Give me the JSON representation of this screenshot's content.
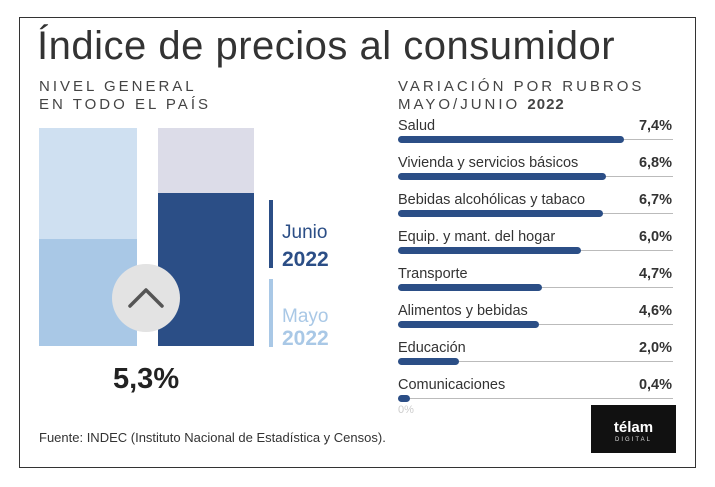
{
  "title": "Índice de precios al consumidor",
  "left_panel": {
    "subtitle_line1": "NIVEL GENERAL",
    "subtitle_line2": "EN TODO EL PAÍS",
    "value_label": "5,3%",
    "trend_icon": "chevron-up-icon",
    "legend": [
      {
        "month": "Junio",
        "year": "2022",
        "color": "#2b4e86"
      },
      {
        "month": "Mayo",
        "year": "2022",
        "color": "#a9c8e6"
      }
    ]
  },
  "right_panel": {
    "subtitle_line1": "VARIACIÓN POR RUBROS",
    "subtitle_line2_prefix": "MAYO/JUNIO ",
    "subtitle_line2_year": "2022",
    "zero_label": "0%"
  },
  "chart_data": [
    {
      "type": "bar",
      "orientation": "vertical",
      "series": [
        {
          "name": "Mayo 2022",
          "color_fill": "#a9c8e6",
          "color_track": "#cfe0f1",
          "value_fraction": 0.49
        },
        {
          "name": "Junio 2022",
          "color_fill": "#2b4e86",
          "color_track": "#dcdce8",
          "value_fraction": 0.7
        }
      ],
      "annotation": "5,3%"
    },
    {
      "type": "bar",
      "orientation": "horizontal",
      "bar_color": "#2b4e86",
      "xlim": [
        0,
        9
      ],
      "categories": [
        "Salud",
        "Vivienda y servicios básicos",
        "Bebidas alcohólicas y tabaco",
        "Equip. y mant. del hogar",
        "Transporte",
        "Alimentos y bebidas",
        "Educación",
        "Comunicaciones"
      ],
      "values": [
        7.4,
        6.8,
        6.7,
        6.0,
        4.7,
        4.6,
        2.0,
        0.4
      ],
      "value_labels": [
        "7,4%",
        "6,8%",
        "6,7%",
        "6,0%",
        "4,7%",
        "4,6%",
        "2,0%",
        "0,4%"
      ]
    }
  ],
  "footer": {
    "source": "Fuente: INDEC (Instituto Nacional de Estadística y Censos).",
    "logo_text": "télam",
    "logo_sub": "DIGITAL"
  }
}
